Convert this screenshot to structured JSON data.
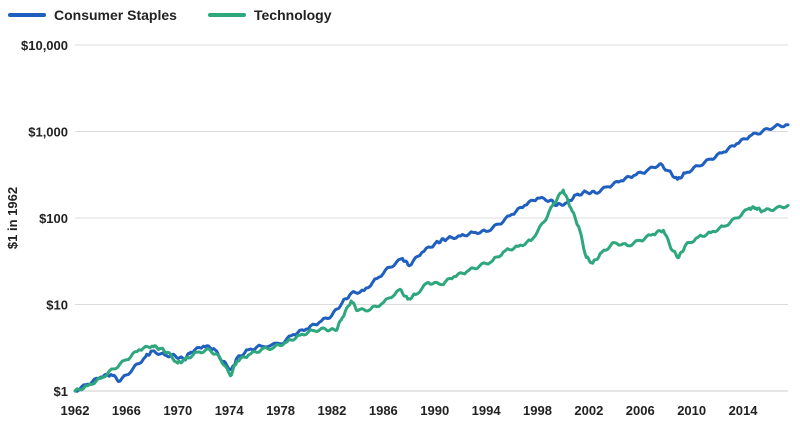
{
  "chart_data": {
    "type": "line",
    "title": "",
    "xlabel": "",
    "ylabel": "$1 in 1962",
    "y_scale": "log",
    "ylim": [
      1,
      10000
    ],
    "xlim": [
      1962,
      2017.5
    ],
    "grid": "horizontal",
    "legend_position": "top-left",
    "x_ticks": [
      1962,
      1966,
      1970,
      1974,
      1978,
      1982,
      1986,
      1990,
      1994,
      1998,
      2002,
      2006,
      2010,
      2014
    ],
    "x_tick_labels": [
      "1962",
      "1966",
      "1970",
      "1974",
      "1978",
      "1982",
      "1986",
      "1990",
      "1994",
      "1998",
      "2002",
      "2006",
      "2010",
      "2014"
    ],
    "y_ticks": [
      1,
      10,
      100,
      1000,
      10000
    ],
    "y_tick_labels": [
      "$1",
      "$10",
      "$100",
      "$1,000",
      "$10,000"
    ],
    "series": [
      {
        "name": "Consumer Staples",
        "color": "#1f5fbf",
        "points": [
          [
            1962.0,
            1.0
          ],
          [
            1963.0,
            1.2
          ],
          [
            1964.0,
            1.45
          ],
          [
            1964.8,
            1.55
          ],
          [
            1965.5,
            1.3
          ],
          [
            1966.5,
            1.8
          ],
          [
            1967.5,
            2.5
          ],
          [
            1968.0,
            2.9
          ],
          [
            1969.0,
            2.6
          ],
          [
            1969.8,
            2.55
          ],
          [
            1970.5,
            2.3
          ],
          [
            1971.0,
            2.8
          ],
          [
            1972.0,
            3.3
          ],
          [
            1972.8,
            3.1
          ],
          [
            1973.5,
            2.2
          ],
          [
            1974.2,
            1.75
          ],
          [
            1974.6,
            2.4
          ],
          [
            1975.5,
            3.0
          ],
          [
            1976.5,
            3.3
          ],
          [
            1978.0,
            3.5
          ],
          [
            1979.0,
            4.5
          ],
          [
            1980.0,
            5.2
          ],
          [
            1981.0,
            6.2
          ],
          [
            1982.0,
            7.5
          ],
          [
            1982.8,
            10.5
          ],
          [
            1983.5,
            13.5
          ],
          [
            1984.5,
            14.5
          ],
          [
            1985.5,
            20.0
          ],
          [
            1986.5,
            27.0
          ],
          [
            1987.5,
            34.0
          ],
          [
            1988.0,
            28.0
          ],
          [
            1989.0,
            40.0
          ],
          [
            1990.0,
            50.0
          ],
          [
            1990.5,
            55.0
          ],
          [
            1991.0,
            58.0
          ],
          [
            1992.0,
            62.0
          ],
          [
            1993.0,
            68.0
          ],
          [
            1994.0,
            70.0
          ],
          [
            1995.0,
            85.0
          ],
          [
            1996.0,
            110.0
          ],
          [
            1997.0,
            140.0
          ],
          [
            1998.0,
            170.0
          ],
          [
            1999.0,
            160.0
          ],
          [
            1999.5,
            140.0
          ],
          [
            2000.3,
            150.0
          ],
          [
            2001.0,
            185.0
          ],
          [
            2001.8,
            200.0
          ],
          [
            2002.5,
            195.0
          ],
          [
            2003.5,
            230.0
          ],
          [
            2004.5,
            270.0
          ],
          [
            2005.5,
            310.0
          ],
          [
            2006.5,
            350.0
          ],
          [
            2007.5,
            420.0
          ],
          [
            2008.2,
            350.0
          ],
          [
            2008.9,
            280.0
          ],
          [
            2009.5,
            330.0
          ],
          [
            2010.5,
            400.0
          ],
          [
            2011.5,
            480.0
          ],
          [
            2012.5,
            580.0
          ],
          [
            2013.5,
            720.0
          ],
          [
            2014.5,
            880.0
          ],
          [
            2015.5,
            1000.0
          ],
          [
            2016.5,
            1150.0
          ],
          [
            2017.5,
            1200.0
          ]
        ]
      },
      {
        "name": "Technology",
        "color": "#2fa77d",
        "points": [
          [
            1962.0,
            1.0
          ],
          [
            1963.0,
            1.15
          ],
          [
            1964.0,
            1.4
          ],
          [
            1965.0,
            1.8
          ],
          [
            1966.0,
            2.3
          ],
          [
            1967.0,
            3.0
          ],
          [
            1968.0,
            3.3
          ],
          [
            1968.6,
            3.1
          ],
          [
            1969.2,
            2.8
          ],
          [
            1970.0,
            2.1
          ],
          [
            1970.5,
            2.3
          ],
          [
            1971.5,
            2.8
          ],
          [
            1972.5,
            3.0
          ],
          [
            1973.3,
            2.4
          ],
          [
            1974.1,
            1.5
          ],
          [
            1974.6,
            2.2
          ],
          [
            1975.5,
            2.6
          ],
          [
            1976.5,
            3.0
          ],
          [
            1977.5,
            3.2
          ],
          [
            1978.5,
            3.7
          ],
          [
            1979.5,
            4.4
          ],
          [
            1980.5,
            5.0
          ],
          [
            1981.5,
            5.2
          ],
          [
            1982.3,
            5.0
          ],
          [
            1982.8,
            7.0
          ],
          [
            1983.5,
            11.0
          ],
          [
            1984.0,
            8.5
          ],
          [
            1985.0,
            8.8
          ],
          [
            1986.0,
            10.5
          ],
          [
            1987.3,
            15.0
          ],
          [
            1987.9,
            11.5
          ],
          [
            1988.5,
            13.0
          ],
          [
            1989.5,
            18.0
          ],
          [
            1990.5,
            17.0
          ],
          [
            1991.5,
            21.0
          ],
          [
            1992.5,
            24.0
          ],
          [
            1993.5,
            28.0
          ],
          [
            1994.5,
            32.0
          ],
          [
            1995.5,
            42.0
          ],
          [
            1996.5,
            47.0
          ],
          [
            1997.5,
            55.0
          ],
          [
            1998.5,
            90.0
          ],
          [
            1999.3,
            150.0
          ],
          [
            2000.0,
            210.0
          ],
          [
            2000.6,
            130.0
          ],
          [
            2001.2,
            80.0
          ],
          [
            2001.8,
            35.0
          ],
          [
            2002.3,
            30.0
          ],
          [
            2003.0,
            40.0
          ],
          [
            2004.0,
            52.0
          ],
          [
            2005.0,
            48.0
          ],
          [
            2006.0,
            55.0
          ],
          [
            2007.0,
            65.0
          ],
          [
            2007.8,
            72.0
          ],
          [
            2008.5,
            42.0
          ],
          [
            2009.0,
            35.0
          ],
          [
            2009.5,
            48.0
          ],
          [
            2010.5,
            60.0
          ],
          [
            2011.5,
            68.0
          ],
          [
            2012.5,
            80.0
          ],
          [
            2013.5,
            100.0
          ],
          [
            2014.5,
            130.0
          ],
          [
            2015.0,
            130.0
          ],
          [
            2015.5,
            120.0
          ],
          [
            2016.5,
            128.0
          ],
          [
            2017.5,
            140.0
          ]
        ]
      }
    ]
  }
}
